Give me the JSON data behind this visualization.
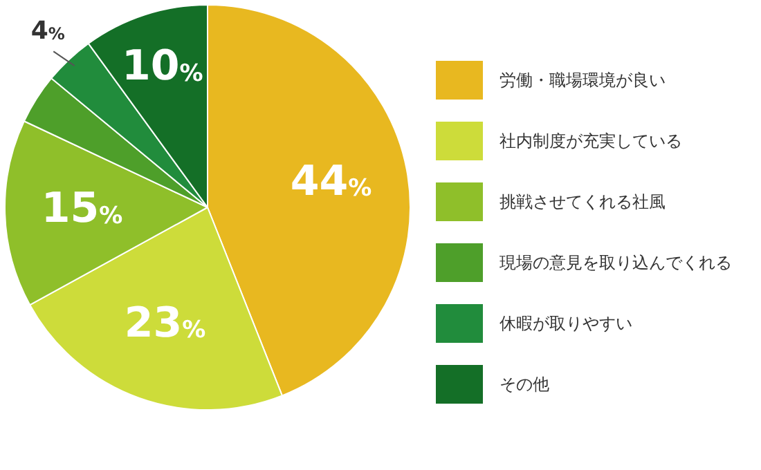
{
  "chart_data": {
    "type": "pie",
    "categories": [
      "労働・職場環境が良い",
      "社内制度が充実している",
      "挑戦させてくれる社風",
      "現場の意見を取り込んでくれる",
      "休暇が取りやすい",
      "その他"
    ],
    "values": [
      44,
      23,
      15,
      4,
      4,
      10
    ],
    "colors": [
      "#e8b820",
      "#cddc3a",
      "#8fbf2a",
      "#4e9f2a",
      "#218c3c",
      "#146f27"
    ],
    "value_labels": [
      "44%",
      "23%",
      "15%",
      null,
      "4%",
      "10%"
    ],
    "legend": "right"
  }
}
